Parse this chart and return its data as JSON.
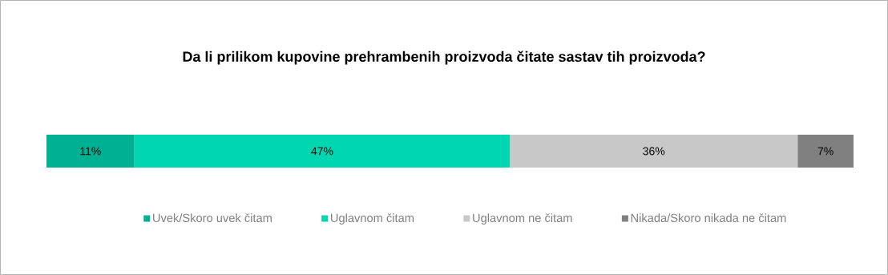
{
  "chart_data": {
    "type": "bar",
    "orientation": "horizontal",
    "stacked": true,
    "title": "Da li prilikom kupovine prehrambenih proizvoda čitate sastav tih proizvoda?",
    "categories": [
      null
    ],
    "legend": "bottom",
    "series": [
      {
        "name": "Uvek/Skoro uvek čitam",
        "color": "#00b092",
        "values": [
          11
        ],
        "value_labels": [
          "11%"
        ]
      },
      {
        "name": "Uglavnom čitam",
        "color": "#00d7b0",
        "values": [
          47
        ],
        "value_labels": [
          "47%"
        ]
      },
      {
        "name": "Uglavnom ne čitam",
        "color": "#c8c8c8",
        "values": [
          36
        ],
        "value_labels": [
          "36%"
        ]
      },
      {
        "name": "Nikada/Skoro nikada ne čitam",
        "color": "#808080",
        "values": [
          7
        ],
        "value_labels": [
          "7%"
        ]
      }
    ]
  }
}
